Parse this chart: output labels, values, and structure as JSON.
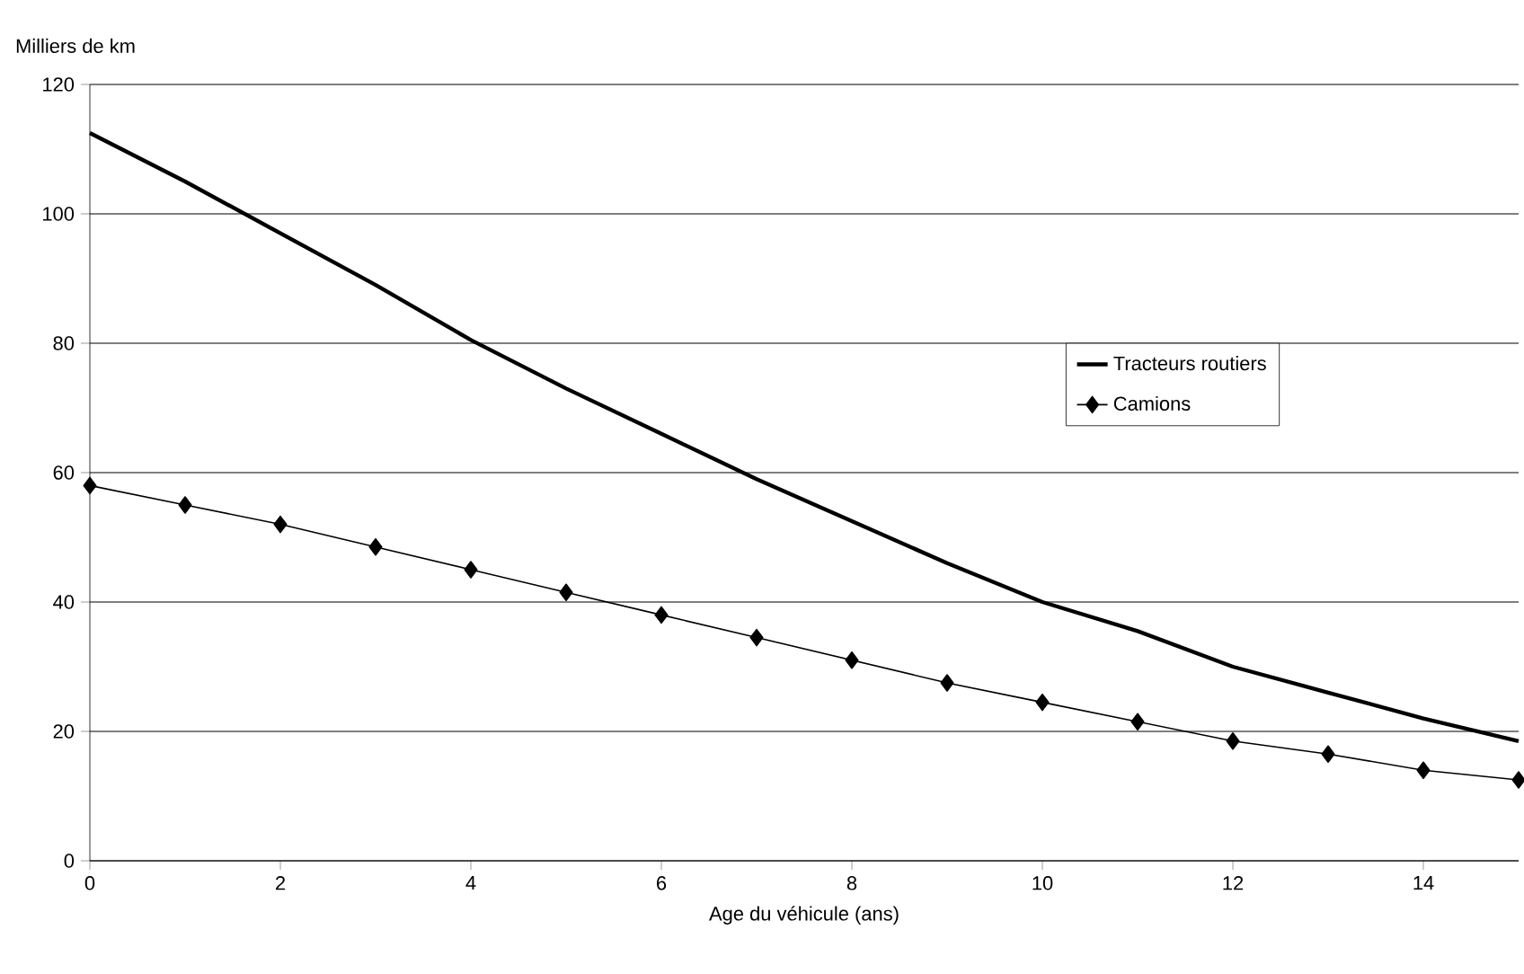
{
  "chart_data": {
    "type": "line",
    "xlabel": "Age du véhicule (ans)",
    "ylabel": "Milliers de km",
    "x": [
      0,
      1,
      2,
      3,
      4,
      5,
      6,
      7,
      8,
      9,
      10,
      11,
      12,
      13,
      14,
      15
    ],
    "series": [
      {
        "name": "Tracteurs routiers",
        "color": "#000000",
        "marker": "none",
        "values": [
          112.5,
          105,
          97,
          89,
          80.5,
          73,
          66,
          59,
          52.5,
          46,
          40,
          35.5,
          30,
          26,
          22,
          18.5
        ]
      },
      {
        "name": "Camions",
        "color": "#000000",
        "marker": "diamond",
        "values": [
          58,
          55,
          52,
          48.5,
          45,
          41.5,
          38,
          34.5,
          31,
          27.5,
          24.5,
          21.5,
          18.5,
          16.5,
          14,
          12.5
        ]
      }
    ],
    "xlim": [
      0,
      15
    ],
    "xticks": [
      0,
      2,
      4,
      6,
      8,
      10,
      12,
      14
    ],
    "ylim": [
      0,
      120
    ],
    "yticks": [
      0,
      20,
      40,
      60,
      80,
      100,
      120
    ],
    "grid": "y",
    "legend": "right"
  }
}
